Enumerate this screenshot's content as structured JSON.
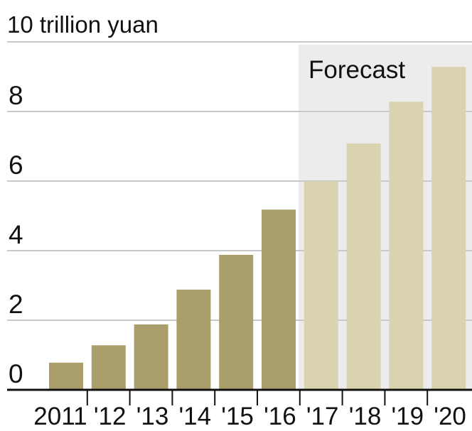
{
  "chart_data": {
    "type": "bar",
    "unit_label": "10 trillion yuan",
    "forecast_label": "Forecast",
    "categories": [
      "2011",
      "'12",
      "'13",
      "'14",
      "'15",
      "'16",
      "'17",
      "'18",
      "'19",
      "'20"
    ],
    "values": [
      0.78,
      1.28,
      1.88,
      2.88,
      3.88,
      5.18,
      6.0,
      7.08,
      8.28,
      9.28
    ],
    "forecast_start_index": 6,
    "yticks": [
      "0",
      "2",
      "4",
      "6",
      "8"
    ],
    "ylim": [
      0,
      10
    ],
    "grid": true,
    "colors": {
      "actual": "#aa9f6b",
      "forecast": "#dad3b0",
      "forecast_band": "#ececec",
      "grid": "#c8c8c8",
      "axis": "#111111"
    }
  }
}
